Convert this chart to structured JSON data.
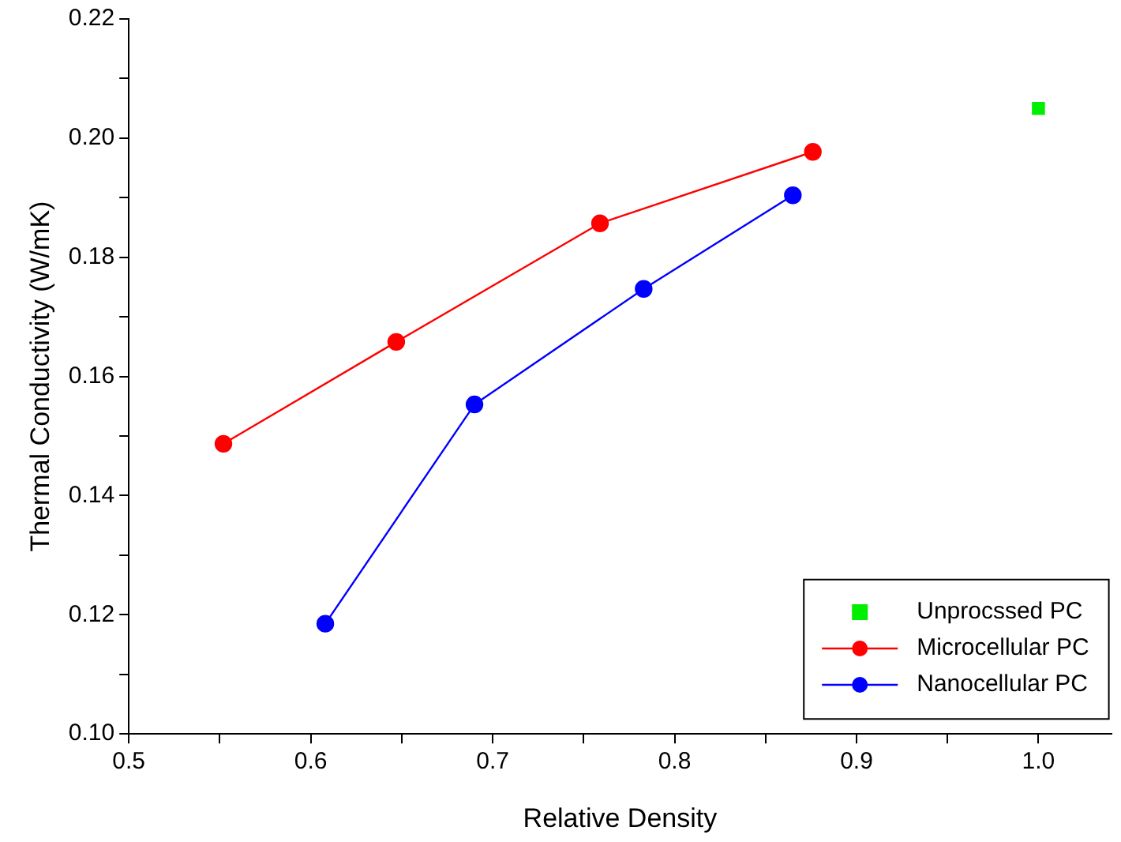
{
  "chart_data": {
    "type": "line",
    "xlabel": "Relative Density",
    "ylabel": "Thermal Conductivity (W/mK)",
    "xlim": [
      0.5,
      1.04
    ],
    "ylim": [
      0.1,
      0.22
    ],
    "xticks": [
      {
        "value": 0.5,
        "label": "0.5"
      },
      {
        "value": 0.55,
        "label": null
      },
      {
        "value": 0.6,
        "label": "0.6"
      },
      {
        "value": 0.65,
        "label": null
      },
      {
        "value": 0.7,
        "label": "0.7"
      },
      {
        "value": 0.75,
        "label": null
      },
      {
        "value": 0.8,
        "label": "0.8"
      },
      {
        "value": 0.85,
        "label": null
      },
      {
        "value": 0.9,
        "label": "0.9"
      },
      {
        "value": 0.95,
        "label": null
      },
      {
        "value": 1.0,
        "label": "1.0"
      }
    ],
    "yticks": [
      {
        "value": 0.1,
        "label": "0.10"
      },
      {
        "value": 0.11,
        "label": null
      },
      {
        "value": 0.12,
        "label": "0.12"
      },
      {
        "value": 0.13,
        "label": null
      },
      {
        "value": 0.14,
        "label": "0.14"
      },
      {
        "value": 0.15,
        "label": null
      },
      {
        "value": 0.16,
        "label": "0.16"
      },
      {
        "value": 0.17,
        "label": null
      },
      {
        "value": 0.18,
        "label": "0.18"
      },
      {
        "value": 0.19,
        "label": null
      },
      {
        "value": 0.2,
        "label": "0.20"
      },
      {
        "value": 0.21,
        "label": null
      },
      {
        "value": 0.22,
        "label": "0.22"
      }
    ],
    "grid": false,
    "legend": "bottom right",
    "series": [
      {
        "name": "Unprocssed PC",
        "type": "scatter",
        "marker": "square",
        "color": "#00ee00",
        "x": [
          1.0
        ],
        "values": [
          0.205
        ]
      },
      {
        "name": "Microcellular PC",
        "type": "line",
        "marker": "circle",
        "color": "#ff0000",
        "x": [
          0.552,
          0.647,
          0.759,
          0.876
        ],
        "values": [
          0.1487,
          0.1658,
          0.1857,
          0.1977
        ]
      },
      {
        "name": "Nanocellular PC",
        "type": "line",
        "marker": "circle",
        "color": "#0000ff",
        "x": [
          0.608,
          0.69,
          0.783,
          0.865
        ],
        "values": [
          0.1185,
          0.1553,
          0.1747,
          0.1904
        ]
      }
    ]
  }
}
